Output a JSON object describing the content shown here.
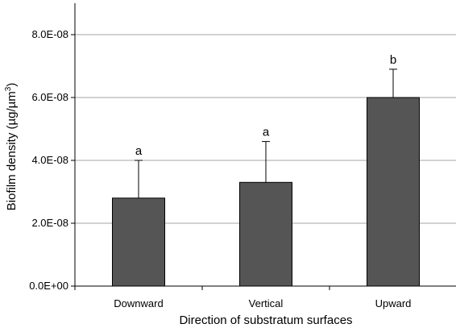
{
  "chart_data": {
    "type": "bar",
    "title": "",
    "xlabel": "Direction of substratum surfaces",
    "ylabel": "Biofilm density (µg/µm³)",
    "ylabel_main": "Biofilm density (µg/µm",
    "ylabel_sup": "3",
    "ylabel_end": ")",
    "categories": [
      "Downward",
      "Vertical",
      "Upward"
    ],
    "values": [
      2.8e-08,
      3.3e-08,
      6e-08
    ],
    "error_upper": [
      4e-08,
      4.6e-08,
      6.9e-08
    ],
    "significance_labels": [
      "a",
      "a",
      "b"
    ],
    "ylim": [
      0,
      9e-08
    ],
    "yticks": [
      0,
      2e-08,
      4e-08,
      6e-08,
      8e-08
    ],
    "ytick_labels": [
      "0.0E+00",
      "2.0E-08",
      "4.0E-08",
      "6.0E-08",
      "8.0E-08"
    ],
    "grid": true,
    "bar_color": "#555555",
    "grid_color": "#a6a6a6"
  }
}
